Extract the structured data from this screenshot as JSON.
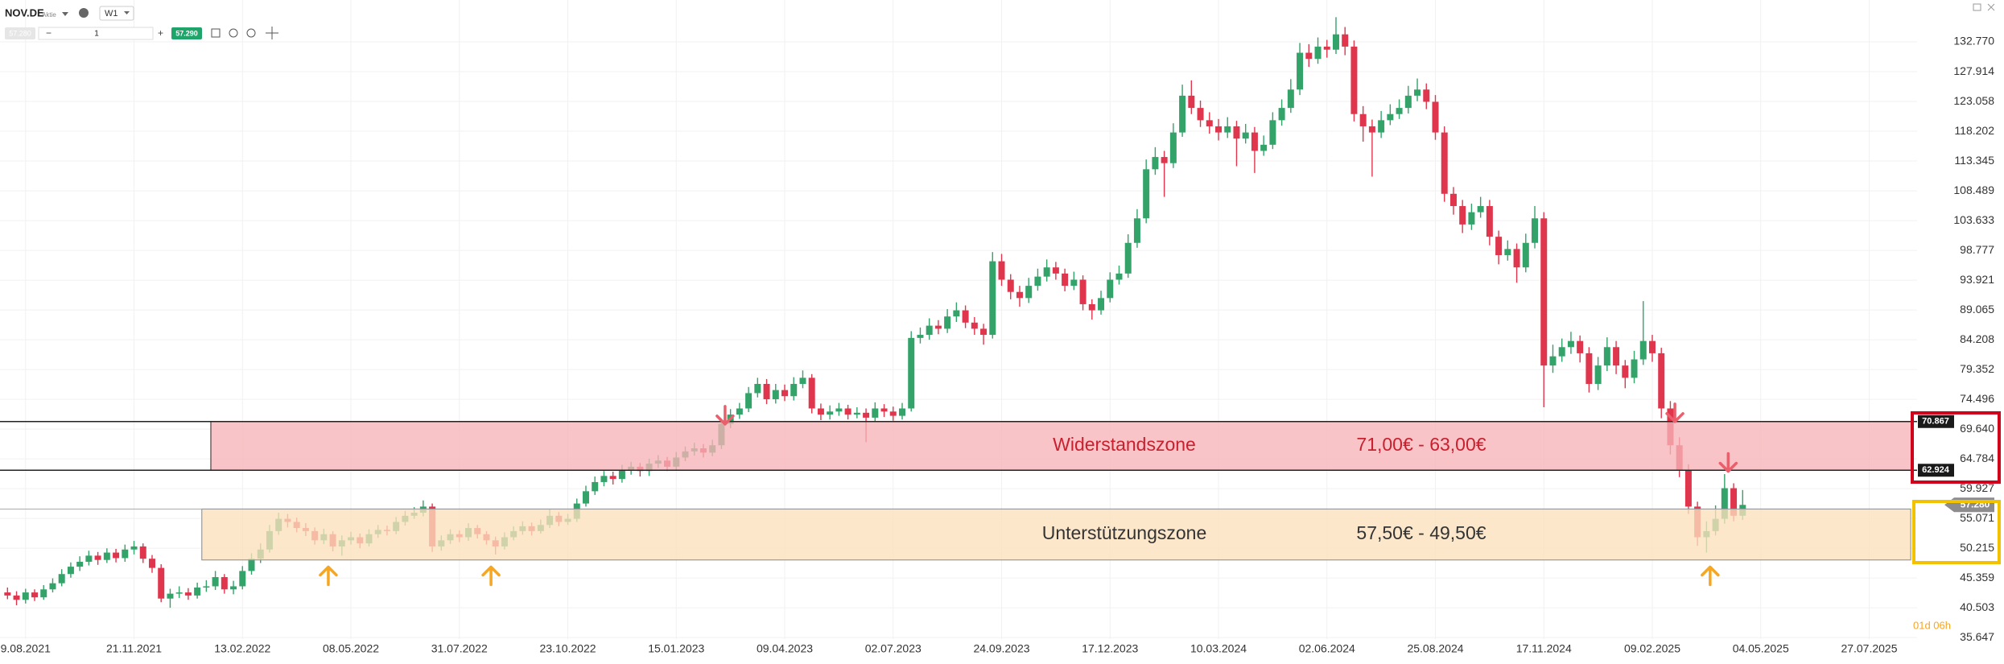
{
  "toolbar": {
    "symbol": "NOV.DE",
    "kind": "Aktie",
    "interval": "W1",
    "quantity": "1",
    "bid": "57.280",
    "ask": "57.290"
  },
  "countdown": "01d 06h",
  "chart_data": {
    "type": "candlestick",
    "up_color": "#33a36a",
    "down_color": "#e0364d",
    "grid": true,
    "xlim": [
      -0.83,
      211.3
    ],
    "ylim": [
      35.4,
      139.6
    ],
    "xticks": [
      {
        "value": 2,
        "label": "9.08.2021"
      },
      {
        "value": 14,
        "label": "21.11.2021"
      },
      {
        "value": 26,
        "label": "13.02.2022"
      },
      {
        "value": 38,
        "label": "08.05.2022"
      },
      {
        "value": 50,
        "label": "31.07.2022"
      },
      {
        "value": 62,
        "label": "23.10.2022"
      },
      {
        "value": 74,
        "label": "15.01.2023"
      },
      {
        "value": 86,
        "label": "09.04.2023"
      },
      {
        "value": 98,
        "label": "02.07.2023"
      },
      {
        "value": 110,
        "label": "24.09.2023"
      },
      {
        "value": 122,
        "label": "17.12.2023"
      },
      {
        "value": 134,
        "label": "10.03.2024"
      },
      {
        "value": 146,
        "label": "02.06.2024"
      },
      {
        "value": 158,
        "label": "25.08.2024"
      },
      {
        "value": 170,
        "label": "17.11.2024"
      },
      {
        "value": 182,
        "label": "09.02.2025"
      },
      {
        "value": 194,
        "label": "04.05.2025"
      },
      {
        "value": 206,
        "label": "27.07.2025"
      }
    ],
    "yticks": [
      {
        "value": 132.77,
        "label": "132.770"
      },
      {
        "value": 127.914,
        "label": "127.914"
      },
      {
        "value": 123.058,
        "label": "123.058"
      },
      {
        "value": 118.202,
        "label": "118.202"
      },
      {
        "value": 113.345,
        "label": "113.345"
      },
      {
        "value": 108.489,
        "label": "108.489"
      },
      {
        "value": 103.633,
        "label": "103.633"
      },
      {
        "value": 98.777,
        "label": "98.777"
      },
      {
        "value": 93.921,
        "label": "93.921"
      },
      {
        "value": 89.065,
        "label": "89.065"
      },
      {
        "value": 84.208,
        "label": "84.208"
      },
      {
        "value": 79.352,
        "label": "79.352"
      },
      {
        "value": 74.496,
        "label": "74.496"
      },
      {
        "value": 69.64,
        "label": "69.640"
      },
      {
        "value": 64.784,
        "label": "64.784"
      },
      {
        "value": 59.927,
        "label": "59.927"
      },
      {
        "value": 55.071,
        "label": "55.071"
      },
      {
        "value": 50.215,
        "label": "50.215"
      },
      {
        "value": 45.359,
        "label": "45.359"
      },
      {
        "value": 40.503,
        "label": "40.503"
      },
      {
        "value": 35.647,
        "label": "35.647"
      }
    ],
    "last_price": {
      "value": 57.28,
      "label": "57.280"
    },
    "zones": [
      {
        "label": "Widerstandszone",
        "range": "71,00€ - 63,00€",
        "top": {
          "value": 70.867,
          "label": "70.867"
        },
        "bottom": {
          "value": 62.924,
          "label": "62.924"
        },
        "start": 22.5,
        "end": 210.6,
        "color": "#f7b3b7",
        "text_color": "#c8202f"
      },
      {
        "label": "Unterstützungszone",
        "range": "57,50€ - 49,50€",
        "top": 56.6,
        "bottom": 48.3,
        "start": 21.5,
        "end": 210.6,
        "color": "#fde0bd",
        "text_color": "#333333"
      }
    ],
    "markers": [
      {
        "x": 35.5,
        "y": 45.7,
        "dir": "up",
        "color": "#f5a623"
      },
      {
        "x": 53.5,
        "y": 45.7,
        "dir": "up",
        "color": "#f5a623"
      },
      {
        "x": 188.4,
        "y": 45.7,
        "dir": "up",
        "color": "#f5a623"
      },
      {
        "x": 79.4,
        "y": 71.9,
        "dir": "down",
        "color": "#e8606c"
      },
      {
        "x": 184.5,
        "y": 72.3,
        "dir": "down",
        "color": "#e8606c"
      },
      {
        "x": 190.4,
        "y": 64.2,
        "dir": "down",
        "color": "#e8606c"
      }
    ],
    "candles": [
      [
        43.0,
        43.8,
        41.9,
        42.5
      ],
      [
        42.5,
        43.2,
        40.9,
        41.8
      ],
      [
        41.8,
        43.6,
        41.2,
        43.0
      ],
      [
        43.0,
        43.5,
        41.6,
        42.2
      ],
      [
        42.2,
        44.2,
        41.8,
        43.5
      ],
      [
        43.5,
        45.3,
        43.0,
        44.5
      ],
      [
        44.5,
        46.8,
        44.0,
        46.0
      ],
      [
        46.0,
        47.9,
        45.4,
        47.2
      ],
      [
        47.2,
        48.9,
        46.5,
        48.0
      ],
      [
        48.0,
        49.8,
        47.4,
        49.0
      ],
      [
        49.0,
        49.6,
        47.5,
        48.3
      ],
      [
        48.3,
        50.2,
        47.8,
        49.5
      ],
      [
        49.5,
        50.1,
        47.9,
        48.6
      ],
      [
        48.6,
        50.8,
        48.0,
        50.0
      ],
      [
        50.0,
        51.4,
        49.2,
        50.5
      ],
      [
        50.5,
        51.0,
        47.8,
        48.5
      ],
      [
        48.5,
        49.1,
        46.2,
        47.0
      ],
      [
        47.0,
        47.6,
        41.4,
        42.0
      ],
      [
        42.0,
        43.6,
        40.5,
        42.8
      ],
      [
        42.8,
        44.0,
        42.1,
        43.0
      ],
      [
        43.0,
        43.7,
        41.8,
        42.5
      ],
      [
        42.5,
        44.6,
        42.0,
        43.8
      ],
      [
        43.8,
        45.0,
        43.1,
        44.0
      ],
      [
        44.0,
        46.5,
        43.4,
        45.5
      ],
      [
        45.5,
        46.0,
        42.8,
        43.5
      ],
      [
        43.5,
        44.9,
        42.7,
        44.0
      ],
      [
        44.0,
        47.3,
        43.5,
        46.5
      ],
      [
        46.5,
        49.4,
        45.9,
        48.5
      ],
      [
        48.5,
        51.0,
        47.8,
        50.0
      ],
      [
        50.0,
        54.0,
        49.5,
        53.0
      ],
      [
        53.0,
        56.0,
        52.4,
        55.0
      ],
      [
        55.0,
        55.8,
        53.6,
        54.5
      ],
      [
        54.5,
        55.2,
        52.8,
        53.5
      ],
      [
        53.5,
        54.3,
        52.2,
        53.0
      ],
      [
        53.0,
        53.6,
        50.8,
        51.5
      ],
      [
        51.5,
        53.4,
        50.9,
        52.5
      ],
      [
        52.5,
        53.0,
        49.7,
        50.5
      ],
      [
        50.5,
        52.3,
        49.0,
        51.5
      ],
      [
        51.5,
        52.9,
        50.8,
        52.0
      ],
      [
        52.0,
        52.6,
        50.2,
        51.0
      ],
      [
        51.0,
        53.3,
        50.5,
        52.5
      ],
      [
        52.5,
        54.0,
        51.9,
        53.2
      ],
      [
        53.2,
        53.9,
        52.3,
        53.0
      ],
      [
        53.0,
        55.3,
        52.5,
        54.5
      ],
      [
        54.5,
        56.3,
        53.9,
        55.5
      ],
      [
        55.5,
        56.9,
        55.0,
        56.0
      ],
      [
        56.0,
        58.0,
        55.4,
        57.0
      ],
      [
        57.0,
        57.5,
        49.6,
        50.5
      ],
      [
        50.5,
        52.3,
        49.8,
        51.5
      ],
      [
        51.5,
        53.3,
        50.9,
        52.5
      ],
      [
        52.5,
        53.1,
        51.2,
        52.0
      ],
      [
        52.0,
        54.3,
        51.4,
        53.5
      ],
      [
        53.5,
        54.0,
        51.8,
        52.5
      ],
      [
        52.5,
        53.0,
        50.8,
        51.5
      ],
      [
        51.5,
        52.1,
        49.2,
        50.5
      ],
      [
        50.5,
        52.8,
        50.0,
        52.0
      ],
      [
        52.0,
        53.8,
        51.5,
        53.0
      ],
      [
        53.0,
        54.6,
        52.4,
        53.8
      ],
      [
        53.8,
        54.4,
        52.3,
        53.0
      ],
      [
        53.0,
        54.9,
        52.6,
        54.0
      ],
      [
        54.0,
        56.6,
        53.5,
        55.5
      ],
      [
        55.5,
        56.1,
        53.8,
        54.5
      ],
      [
        54.5,
        55.8,
        54.0,
        55.0
      ],
      [
        55.0,
        58.3,
        54.5,
        57.5
      ],
      [
        57.5,
        60.4,
        57.0,
        59.5
      ],
      [
        59.5,
        61.9,
        58.9,
        61.0
      ],
      [
        61.0,
        62.8,
        60.3,
        62.0
      ],
      [
        62.0,
        62.7,
        60.6,
        61.5
      ],
      [
        61.5,
        63.8,
        60.9,
        63.0
      ],
      [
        63.0,
        64.3,
        62.2,
        63.5
      ],
      [
        63.5,
        64.1,
        61.9,
        62.8
      ],
      [
        62.8,
        64.8,
        62.0,
        64.0
      ],
      [
        64.0,
        65.4,
        63.3,
        64.5
      ],
      [
        64.5,
        65.1,
        62.8,
        63.5
      ],
      [
        63.5,
        65.9,
        63.0,
        65.0
      ],
      [
        65.0,
        66.8,
        64.4,
        66.0
      ],
      [
        66.0,
        67.4,
        65.3,
        66.5
      ],
      [
        66.5,
        67.2,
        65.0,
        65.8
      ],
      [
        65.8,
        67.9,
        65.2,
        67.0
      ],
      [
        67.0,
        71.3,
        66.4,
        70.5
      ],
      [
        70.5,
        72.9,
        69.8,
        72.0
      ],
      [
        72.0,
        73.9,
        71.3,
        73.0
      ],
      [
        73.0,
        76.5,
        72.4,
        75.5
      ],
      [
        75.5,
        78.0,
        74.8,
        77.0
      ],
      [
        77.0,
        77.8,
        73.7,
        74.5
      ],
      [
        74.5,
        77.0,
        73.8,
        76.0
      ],
      [
        76.0,
        76.9,
        74.2,
        75.0
      ],
      [
        75.0,
        78.1,
        74.3,
        77.0
      ],
      [
        77.0,
        79.2,
        76.3,
        78.0
      ],
      [
        78.0,
        78.6,
        72.2,
        73.0
      ],
      [
        73.0,
        73.8,
        71.1,
        72.0
      ],
      [
        72.0,
        73.5,
        71.2,
        72.5
      ],
      [
        72.5,
        73.9,
        71.8,
        73.0
      ],
      [
        73.0,
        73.6,
        71.2,
        72.0
      ],
      [
        72.0,
        73.2,
        71.4,
        72.3
      ],
      [
        72.3,
        73.0,
        67.5,
        71.5
      ],
      [
        71.5,
        74.0,
        70.8,
        73.0
      ],
      [
        73.0,
        73.7,
        71.6,
        72.5
      ],
      [
        72.5,
        73.3,
        71.0,
        71.8
      ],
      [
        71.8,
        73.9,
        71.2,
        73.0
      ],
      [
        73.0,
        85.6,
        72.5,
        84.5
      ],
      [
        84.5,
        86.2,
        83.6,
        85.0
      ],
      [
        85.0,
        87.7,
        84.2,
        86.5
      ],
      [
        86.5,
        87.4,
        85.1,
        86.0
      ],
      [
        86.0,
        89.2,
        85.3,
        88.0
      ],
      [
        88.0,
        90.3,
        87.1,
        89.0
      ],
      [
        89.0,
        89.8,
        86.1,
        87.0
      ],
      [
        87.0,
        87.9,
        85.0,
        86.0
      ],
      [
        86.0,
        86.8,
        83.4,
        85.0
      ],
      [
        85.0,
        98.5,
        84.4,
        97.0
      ],
      [
        97.0,
        98.2,
        93.0,
        94.0
      ],
      [
        94.0,
        94.9,
        90.8,
        92.0
      ],
      [
        92.0,
        93.0,
        89.6,
        91.0
      ],
      [
        91.0,
        94.3,
        90.2,
        93.0
      ],
      [
        93.0,
        95.8,
        92.2,
        94.5
      ],
      [
        94.5,
        97.3,
        93.7,
        96.0
      ],
      [
        96.0,
        96.9,
        94.0,
        95.0
      ],
      [
        95.0,
        95.8,
        92.1,
        93.0
      ],
      [
        93.0,
        95.3,
        92.3,
        94.0
      ],
      [
        94.0,
        94.7,
        89.0,
        90.0
      ],
      [
        90.0,
        90.8,
        87.5,
        89.0
      ],
      [
        89.0,
        92.2,
        88.3,
        91.0
      ],
      [
        91.0,
        95.2,
        90.3,
        94.0
      ],
      [
        94.0,
        96.3,
        93.2,
        95.0
      ],
      [
        95.0,
        101.4,
        94.3,
        100.0
      ],
      [
        100.0,
        105.5,
        99.2,
        104.0
      ],
      [
        104.0,
        113.6,
        103.2,
        112.0
      ],
      [
        112.0,
        115.6,
        111.1,
        114.0
      ],
      [
        114.0,
        115.0,
        107.5,
        113.0
      ],
      [
        113.0,
        119.5,
        112.2,
        118.0
      ],
      [
        118.0,
        125.8,
        117.3,
        124.0
      ],
      [
        124.0,
        126.5,
        121.0,
        122.0
      ],
      [
        122.0,
        123.2,
        118.9,
        120.0
      ],
      [
        120.0,
        121.3,
        117.8,
        119.0
      ],
      [
        119.0,
        120.2,
        116.7,
        118.0
      ],
      [
        118.0,
        120.5,
        117.1,
        119.0
      ],
      [
        119.0,
        119.9,
        112.5,
        117.0
      ],
      [
        117.0,
        119.4,
        116.2,
        118.0
      ],
      [
        118.0,
        118.9,
        111.4,
        115.0
      ],
      [
        115.0,
        117.5,
        114.2,
        116.0
      ],
      [
        116.0,
        121.3,
        115.3,
        120.0
      ],
      [
        120.0,
        123.4,
        119.1,
        122.0
      ],
      [
        122.0,
        126.7,
        121.2,
        125.0
      ],
      [
        125.0,
        132.6,
        124.1,
        131.0
      ],
      [
        131.0,
        132.4,
        128.7,
        130.0
      ],
      [
        130.0,
        133.5,
        129.2,
        132.0
      ],
      [
        132.0,
        133.1,
        130.2,
        131.5
      ],
      [
        131.5,
        136.8,
        130.8,
        134.0
      ],
      [
        134.0,
        135.2,
        130.6,
        132.0
      ],
      [
        132.0,
        133.0,
        119.8,
        121.0
      ],
      [
        121.0,
        122.3,
        116.5,
        119.0
      ],
      [
        119.0,
        120.1,
        110.8,
        118.0
      ],
      [
        118.0,
        121.5,
        117.1,
        120.0
      ],
      [
        120.0,
        122.6,
        119.2,
        121.0
      ],
      [
        121.0,
        123.4,
        120.2,
        122.0
      ],
      [
        122.0,
        125.6,
        121.1,
        124.0
      ],
      [
        124.0,
        126.8,
        123.1,
        125.0
      ],
      [
        125.0,
        126.0,
        121.8,
        123.0
      ],
      [
        123.0,
        124.1,
        116.8,
        118.0
      ],
      [
        118.0,
        119.0,
        106.7,
        108.0
      ],
      [
        108.0,
        109.1,
        104.6,
        106.0
      ],
      [
        106.0,
        107.0,
        101.6,
        103.0
      ],
      [
        103.0,
        106.4,
        102.1,
        105.0
      ],
      [
        105.0,
        107.5,
        104.1,
        106.0
      ],
      [
        106.0,
        107.0,
        99.6,
        101.0
      ],
      [
        101.0,
        102.0,
        96.5,
        98.0
      ],
      [
        98.0,
        100.4,
        97.1,
        99.0
      ],
      [
        99.0,
        99.9,
        93.5,
        96.0
      ],
      [
        96.0,
        101.5,
        95.2,
        100.0
      ],
      [
        100.0,
        106.0,
        99.1,
        104.0
      ],
      [
        104.0,
        105.0,
        73.2,
        80.0
      ],
      [
        80.0,
        83.4,
        78.8,
        81.5
      ],
      [
        81.5,
        84.4,
        80.6,
        83.0
      ],
      [
        83.0,
        85.5,
        81.9,
        84.0
      ],
      [
        84.0,
        84.9,
        80.5,
        82.0
      ],
      [
        82.0,
        83.0,
        75.6,
        77.0
      ],
      [
        77.0,
        81.4,
        76.0,
        80.0
      ],
      [
        80.0,
        84.6,
        79.1,
        83.0
      ],
      [
        83.0,
        84.0,
        78.6,
        80.0
      ],
      [
        80.0,
        80.9,
        76.3,
        78.0
      ],
      [
        78.0,
        82.4,
        77.1,
        81.0
      ],
      [
        81.0,
        90.5,
        80.1,
        84.0
      ],
      [
        84.0,
        85.0,
        80.6,
        82.0
      ],
      [
        82.0,
        82.9,
        71.4,
        73.0
      ],
      [
        73.0,
        74.2,
        65.5,
        67.0
      ],
      [
        67.0,
        68.3,
        61.8,
        63.0
      ],
      [
        63.0,
        63.9,
        55.8,
        57.0
      ],
      [
        57.0,
        57.8,
        50.6,
        52.0
      ],
      [
        52.0,
        54.6,
        49.5,
        53.0
      ],
      [
        53.0,
        57.2,
        52.3,
        55.0
      ],
      [
        55.0,
        62.3,
        54.2,
        60.0
      ],
      [
        60.0,
        60.8,
        54.6,
        55.5
      ],
      [
        55.5,
        59.7,
        54.8,
        57.28
      ]
    ]
  }
}
